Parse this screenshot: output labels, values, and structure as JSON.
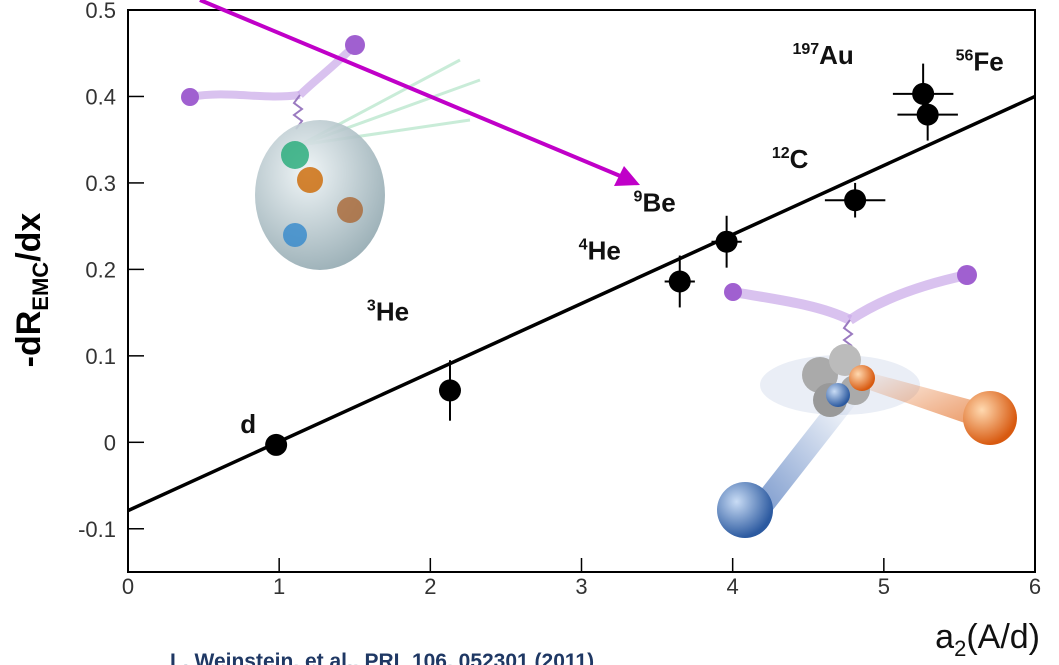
{
  "chart_data": {
    "type": "scatter",
    "y_title": {
      "main": "-dR",
      "sub": "EMC",
      "tail": "/dx"
    },
    "x_title": {
      "main": "a",
      "sub": "2",
      "tail": "(A/d)"
    },
    "citation": "L. Weinstein, et al., PRL 106, 052301 (2011)",
    "x": [
      0.98,
      2.13,
      3.65,
      3.96,
      4.81,
      5.26,
      5.29
    ],
    "values": [
      -0.003,
      0.06,
      0.186,
      0.232,
      0.28,
      0.403,
      0.379
    ],
    "yerr": [
      0.005,
      0.035,
      0.03,
      0.03,
      0.02,
      0.035,
      0.03
    ],
    "xerr": [
      0.02,
      0.02,
      0.1,
      0.1,
      0.2,
      0.2,
      0.2
    ],
    "point_labels": [
      {
        "sym": "d"
      },
      {
        "sup": "3",
        "sym": "He"
      },
      {
        "sup": "4",
        "sym": "He"
      },
      {
        "sup": "9",
        "sym": "Be"
      },
      {
        "sup": "12",
        "sym": "C"
      },
      {
        "sup": "197",
        "sym": "Au"
      },
      {
        "sup": "56",
        "sym": "Fe"
      }
    ],
    "point_color": "#000000",
    "fit": {
      "x": [
        0,
        6
      ],
      "values": [
        -0.079,
        0.4
      ],
      "color": "#000000"
    },
    "xlim": [
      0,
      6
    ],
    "ylim": [
      -0.15,
      0.5
    ],
    "xticks": [
      0,
      1,
      2,
      3,
      4,
      5,
      6
    ],
    "yticks": [
      -0.1,
      0,
      0.1,
      0.2,
      0.3,
      0.4,
      0.5
    ]
  }
}
